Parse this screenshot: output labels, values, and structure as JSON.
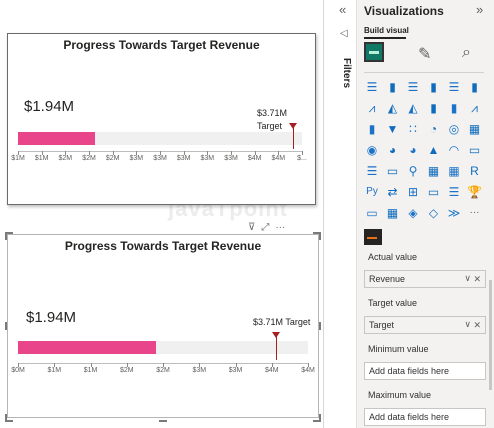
{
  "canvas": {
    "watermark": "javaTpoint",
    "visual_tools": {
      "filter": "⊽",
      "focus": "⤢",
      "more": "···"
    }
  },
  "visual1": {
    "title": "Progress Towards Target Revenue",
    "value": "$1.94M",
    "target_label_value": "$3.71M",
    "target_label_word": "Target",
    "progress_fraction": 0.27,
    "target_fraction": 0.97,
    "axis_ticks": [
      "$1M",
      "$1M",
      "$2M",
      "$2M",
      "$2M",
      "$3M",
      "$3M",
      "$3M",
      "$3M",
      "$3M",
      "$4M",
      "$4M",
      "$..."
    ]
  },
  "visual2": {
    "title": "Progress Towards Target Revenue",
    "value": "$1.94M",
    "target_label": "$3.71M Target",
    "progress_fraction": 0.475,
    "target_fraction": 0.89,
    "axis_ticks": [
      "$0M",
      "$1M",
      "$1M",
      "$2M",
      "$2M",
      "$3M",
      "$3M",
      "$4M",
      "$4M"
    ]
  },
  "filters": {
    "label": "Filters"
  },
  "visualizations": {
    "title": "Visualizations",
    "build_visual": "Build visual",
    "collapse": "«",
    "expand": "»",
    "icon_rows": [
      [
        "stacked-bar-icon",
        "clustered-column-icon",
        "stacked-bar-h-icon",
        "stacked-column-icon",
        "clustered-bar-icon",
        "100-bar-icon"
      ],
      [
        "line-icon",
        "area-icon",
        "stacked-area-icon",
        "line-column-icon",
        "line-clustered-icon",
        "ribbon-icon"
      ],
      [
        "waterfall-icon",
        "funnel-icon",
        "scatter-icon",
        "pie-icon",
        "donut-icon",
        "treemap-icon"
      ],
      [
        "map-icon",
        "filled-map-icon",
        "shape-map-icon",
        "azure-map-icon",
        "gauge-icon",
        "card-icon"
      ],
      [
        "multirow-card-icon",
        "kpi-icon",
        "slicer-icon",
        "table-icon",
        "matrix-icon",
        "r-visual-icon"
      ],
      [
        "python-visual-icon",
        "key-influencers-icon",
        "decomposition-tree-icon",
        "qa-icon",
        "narrative-icon",
        "trophy-icon"
      ],
      [
        "paginated-report-icon",
        "power-apps-icon",
        "power-automate-icon",
        "diamond-icon",
        "chevrons-icon",
        "more-icon"
      ]
    ],
    "icon_glyphs": [
      [
        "☰",
        "▮",
        "☰",
        "▮",
        "☰",
        "▮"
      ],
      [
        "⩘",
        "◭",
        "◭",
        "▮",
        "▮",
        "⩘"
      ],
      [
        "▮",
        "▼",
        "∷",
        "◔",
        "◎",
        "▦"
      ],
      [
        "◉",
        "◕",
        "◕",
        "▲",
        "◠",
        "▭"
      ],
      [
        "☰",
        "▭",
        "⚲",
        "▦",
        "▦",
        "R"
      ],
      [
        "Py",
        "⇄",
        "⊞",
        "▭",
        "☰",
        "🏆"
      ],
      [
        "▭",
        "▦",
        "◈",
        "◇",
        "≫",
        "···"
      ]
    ],
    "icon_colors": [
      "#1a73c8",
      "#1a73c8",
      "#1a73c8",
      "#1a73c8",
      "#1a73c8",
      "#1a73c8"
    ],
    "fields": [
      {
        "label": "Actual value",
        "value": "Revenue",
        "filled": true
      },
      {
        "label": "Target value",
        "value": "Target",
        "filled": true
      },
      {
        "label": "Minimum value",
        "value": "Add data fields here",
        "filled": false
      },
      {
        "label": "Maximum value",
        "value": "Add data fields here",
        "filled": false
      }
    ],
    "accent_color": "#e8458b",
    "target_color": "#a32024"
  }
}
